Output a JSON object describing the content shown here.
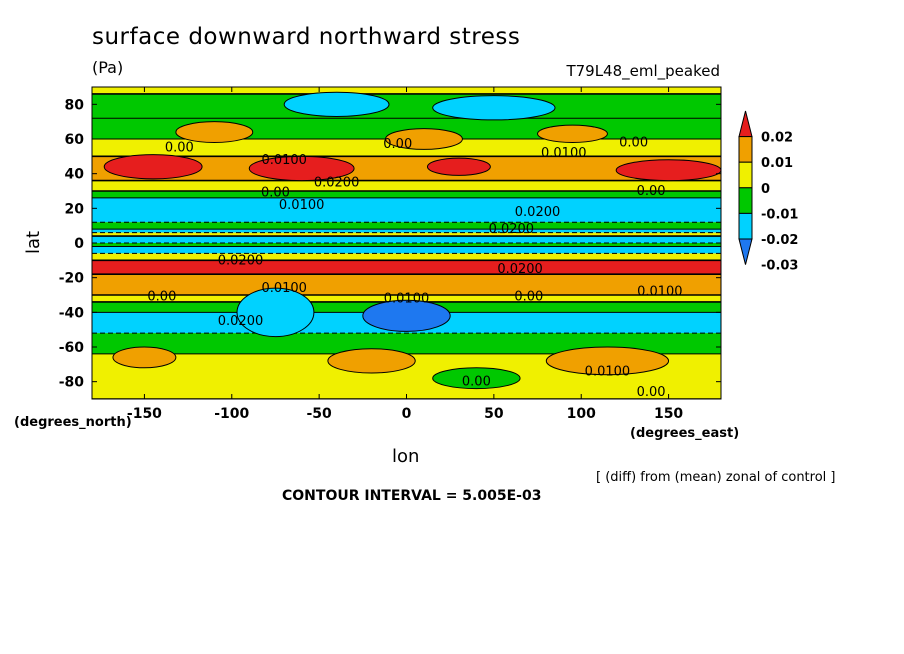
{
  "figure": {
    "title": "surface downward northward stress",
    "units_label": "(Pa)",
    "run_label": "T79L48_eml_peaked",
    "xlabel": "lon",
    "ylabel": "lat",
    "x_units": "(degrees_east)",
    "y_units": "(degrees_north)",
    "diff_note": "[ (diff) from (mean) zonal of control ]",
    "contour_interval": "CONTOUR INTERVAL = 5.005E-03"
  },
  "colors": {
    "levels": [
      "#1e78f0",
      "#00d2ff",
      "#00c800",
      "#f0f000",
      "#f0a000",
      "#e61e1e"
    ],
    "contour": "#000000"
  },
  "chart_data": {
    "type": "heatmap",
    "xlim": [
      -180,
      180
    ],
    "ylim": [
      -90,
      90
    ],
    "xticks": [
      -150,
      -100,
      -50,
      0,
      50,
      100,
      150
    ],
    "yticks": [
      -80,
      -60,
      -40,
      -20,
      0,
      20,
      40,
      60,
      80
    ],
    "colorbar": {
      "labels": [
        "0.02",
        "0.01",
        "0",
        "-0.01",
        "-0.02",
        "-0.03"
      ],
      "boundaries": [
        -0.03,
        -0.02,
        -0.01,
        0,
        0.01,
        0.02
      ]
    },
    "bands": [
      {
        "lat_from": 90,
        "lat_to": 86,
        "level": 3
      },
      {
        "lat_from": 86,
        "lat_to": 72,
        "level": 2
      },
      {
        "lat_from": 72,
        "lat_to": 60,
        "level": 2
      },
      {
        "lat_from": 60,
        "lat_to": 50,
        "level": 3
      },
      {
        "lat_from": 50,
        "lat_to": 36,
        "level": 4
      },
      {
        "lat_from": 36,
        "lat_to": 30,
        "level": 3
      },
      {
        "lat_from": 30,
        "lat_to": 26,
        "level": 2
      },
      {
        "lat_from": 26,
        "lat_to": 12,
        "level": 1
      },
      {
        "lat_from": 12,
        "lat_to": 8,
        "level": 2
      },
      {
        "lat_from": 8,
        "lat_to": 6,
        "level": 1
      },
      {
        "lat_from": 6,
        "lat_to": 4,
        "level": 3
      },
      {
        "lat_from": 4,
        "lat_to": 0,
        "level": 1
      },
      {
        "lat_from": 0,
        "lat_to": -2,
        "level": 2
      },
      {
        "lat_from": -2,
        "lat_to": -6,
        "level": 1
      },
      {
        "lat_from": -6,
        "lat_to": -10,
        "level": 3
      },
      {
        "lat_from": -10,
        "lat_to": -18,
        "level": 5
      },
      {
        "lat_from": -18,
        "lat_to": -30,
        "level": 4
      },
      {
        "lat_from": -30,
        "lat_to": -34,
        "level": 3
      },
      {
        "lat_from": -34,
        "lat_to": -40,
        "level": 2
      },
      {
        "lat_from": -40,
        "lat_to": -52,
        "level": 1
      },
      {
        "lat_from": -52,
        "lat_to": -64,
        "level": 2
      },
      {
        "lat_from": -64,
        "lat_to": -90,
        "level": 3
      }
    ],
    "blobs": [
      {
        "lon": -145,
        "lat": 44,
        "rlon": 28,
        "rlat": 7,
        "level": 5
      },
      {
        "lon": -60,
        "lat": 43,
        "rlon": 30,
        "rlat": 7,
        "level": 5
      },
      {
        "lon": 30,
        "lat": 44,
        "rlon": 18,
        "rlat": 5,
        "level": 5
      },
      {
        "lon": 150,
        "lat": 42,
        "rlon": 30,
        "rlat": 6,
        "level": 5
      },
      {
        "lon": -110,
        "lat": 64,
        "rlon": 22,
        "rlat": 6,
        "level": 4
      },
      {
        "lon": 10,
        "lat": 60,
        "rlon": 22,
        "rlat": 6,
        "level": 4
      },
      {
        "lon": 95,
        "lat": 63,
        "rlon": 20,
        "rlat": 5,
        "level": 4
      },
      {
        "lon": -40,
        "lat": 80,
        "rlon": 30,
        "rlat": 7,
        "level": 1
      },
      {
        "lon": 50,
        "lat": 78,
        "rlon": 35,
        "rlat": 7,
        "level": 1
      },
      {
        "lon": -75,
        "lat": -40,
        "rlon": 22,
        "rlat": 14,
        "level": 1
      },
      {
        "lon": 0,
        "lat": -42,
        "rlon": 25,
        "rlat": 9,
        "level": 0
      },
      {
        "lon": -20,
        "lat": -68,
        "rlon": 25,
        "rlat": 7,
        "level": 4
      },
      {
        "lon": 115,
        "lat": -68,
        "rlon": 35,
        "rlat": 8,
        "level": 4
      },
      {
        "lon": -150,
        "lat": -66,
        "rlon": 18,
        "rlat": 6,
        "level": 4
      },
      {
        "lon": 40,
        "lat": -78,
        "rlon": 25,
        "rlat": 6,
        "level": 2
      }
    ],
    "contour_labels": [
      {
        "text": "0.00",
        "lon": -130,
        "lat": 55
      },
      {
        "text": "0.0100",
        "lon": -70,
        "lat": 48
      },
      {
        "text": "0.00",
        "lon": -5,
        "lat": 57
      },
      {
        "text": "0.0100",
        "lon": 90,
        "lat": 52
      },
      {
        "text": "0.00",
        "lon": 130,
        "lat": 58
      },
      {
        "text": "0.00",
        "lon": -75,
        "lat": 29
      },
      {
        "text": "0.0200",
        "lon": -40,
        "lat": 35
      },
      {
        "text": "0.0100",
        "lon": -60,
        "lat": 22
      },
      {
        "text": "0.00",
        "lon": 140,
        "lat": 30
      },
      {
        "text": "0.0200",
        "lon": 75,
        "lat": 18
      },
      {
        "text": "0.0200",
        "lon": 60,
        "lat": 8
      },
      {
        "text": "0.0200",
        "lon": -95,
        "lat": -10
      },
      {
        "text": "0.0200",
        "lon": 65,
        "lat": -15
      },
      {
        "text": "0.0100",
        "lon": -70,
        "lat": -26
      },
      {
        "text": "0.0100",
        "lon": 145,
        "lat": -28
      },
      {
        "text": "0.00",
        "lon": -140,
        "lat": -31
      },
      {
        "text": "0.0100",
        "lon": 0,
        "lat": -32
      },
      {
        "text": "0.00",
        "lon": 70,
        "lat": -31
      },
      {
        "text": "0.0200",
        "lon": -95,
        "lat": -45
      },
      {
        "text": "0.00",
        "lon": 40,
        "lat": -80
      },
      {
        "text": "0.0100",
        "lon": 115,
        "lat": -74
      },
      {
        "text": "0.00",
        "lon": 140,
        "lat": -86
      }
    ]
  }
}
